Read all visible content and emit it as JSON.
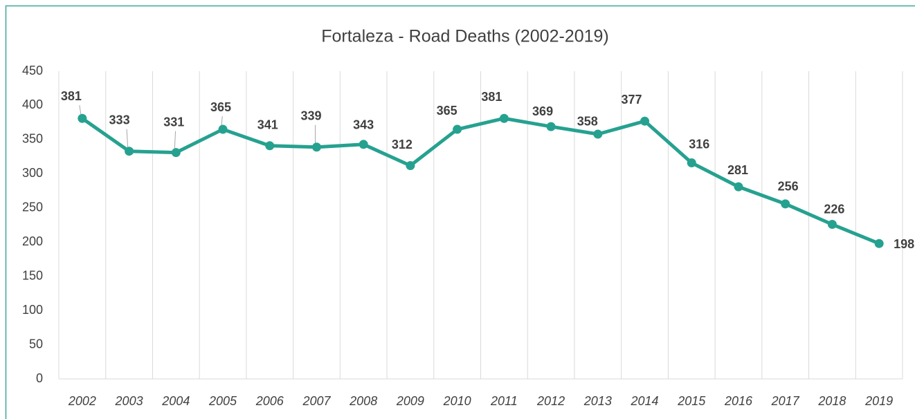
{
  "chart_data": {
    "type": "line",
    "title": "Fortaleza - Road Deaths (2002-2019)",
    "categories": [
      "2002",
      "2003",
      "2004",
      "2005",
      "2006",
      "2007",
      "2008",
      "2009",
      "2010",
      "2011",
      "2012",
      "2013",
      "2014",
      "2015",
      "2016",
      "2017",
      "2018",
      "2019"
    ],
    "values": [
      381,
      333,
      331,
      365,
      341,
      339,
      343,
      312,
      365,
      381,
      369,
      358,
      377,
      316,
      281,
      256,
      226,
      198
    ],
    "color": "#26a190",
    "ylim": [
      0,
      450
    ],
    "yticks": [
      0,
      50,
      100,
      150,
      200,
      250,
      300,
      350,
      400,
      450
    ],
    "grid": true
  }
}
